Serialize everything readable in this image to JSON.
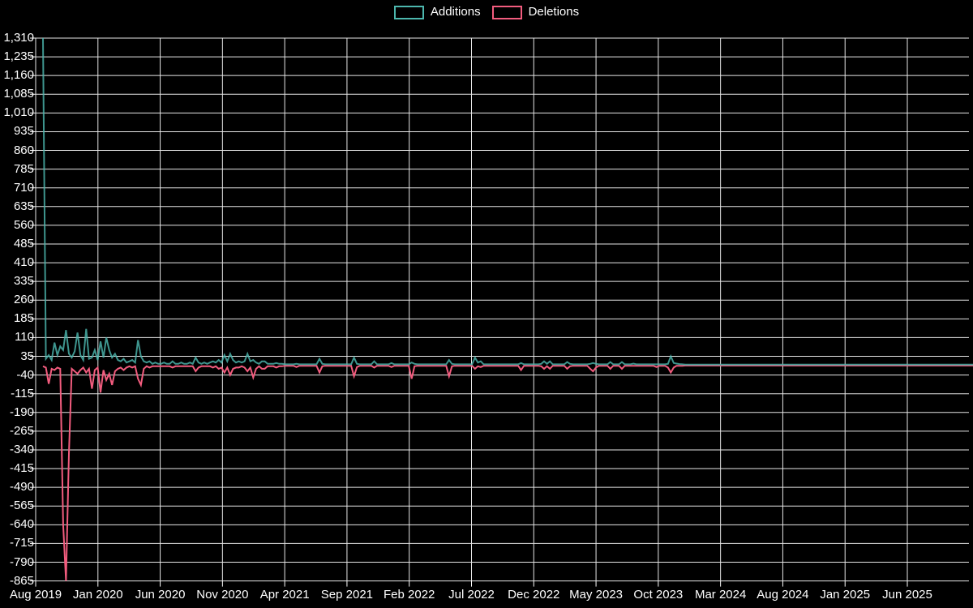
{
  "legend": {
    "items": [
      {
        "label": "Additions",
        "color": "#4cb6ad"
      },
      {
        "label": "Deletions",
        "color": "#f25c7e"
      }
    ]
  },
  "colors": {
    "background": "#000000",
    "grid": "#e6e6e6",
    "axis": "#ffffff",
    "text": "#ffffff",
    "additions": "#4cb6ad",
    "deletions": "#f25c7e"
  },
  "chart_data": {
    "type": "line",
    "title": "",
    "xlabel": "",
    "ylabel": "",
    "grid": true,
    "legend_position": "top-center",
    "x_axis": {
      "tick_labels": [
        "Aug 2019",
        "Jan 2020",
        "Jun 2020",
        "Nov 2020",
        "Apr 2021",
        "Sep 2021",
        "Feb 2022",
        "Jul 2022",
        "Dec 2022",
        "May 2023",
        "Oct 2023",
        "Mar 2024",
        "Aug 2024",
        "Jan 2025",
        "Jun 2025"
      ],
      "months_per_tick": 5
    },
    "y_axis": {
      "min": -865,
      "max": 1310,
      "step": 75,
      "tick_labels": [
        "1,310",
        "1,235",
        "1,160",
        "1,085",
        "1,010",
        "935",
        "860",
        "785",
        "710",
        "635",
        "560",
        "485",
        "410",
        "335",
        "260",
        "185",
        "110",
        "35",
        "-40",
        "-115",
        "-190",
        "-265",
        "-340",
        "-415",
        "-490",
        "-565",
        "-640",
        "-715",
        "-790",
        "-865"
      ]
    },
    "series": [
      {
        "name": "Additions",
        "color": "#4cb6ad",
        "sign": 1
      },
      {
        "name": "Deletions",
        "color": "#f25c7e",
        "sign": -1
      }
    ],
    "x_unit": "week",
    "weekly_values_rle_count_additions_deletions": [
      [
        1,
        1310,
        -5
      ],
      [
        1,
        25,
        -10
      ],
      [
        1,
        40,
        -75
      ],
      [
        1,
        20,
        -15
      ],
      [
        1,
        90,
        -20
      ],
      [
        1,
        40,
        -10
      ],
      [
        1,
        75,
        -15
      ],
      [
        1,
        60,
        -640
      ],
      [
        1,
        140,
        -865
      ],
      [
        1,
        45,
        -355
      ],
      [
        1,
        30,
        -15
      ],
      [
        1,
        55,
        -25
      ],
      [
        1,
        130,
        -35
      ],
      [
        1,
        40,
        -20
      ],
      [
        1,
        20,
        -10
      ],
      [
        1,
        145,
        -30
      ],
      [
        1,
        25,
        -15
      ],
      [
        1,
        30,
        -95
      ],
      [
        1,
        60,
        -20
      ],
      [
        1,
        20,
        -10
      ],
      [
        1,
        95,
        -110
      ],
      [
        1,
        30,
        -20
      ],
      [
        1,
        110,
        -60
      ],
      [
        1,
        60,
        -35
      ],
      [
        1,
        30,
        -80
      ],
      [
        1,
        45,
        -25
      ],
      [
        1,
        20,
        -15
      ],
      [
        1,
        15,
        -10
      ],
      [
        1,
        25,
        -20
      ],
      [
        1,
        10,
        -10
      ],
      [
        1,
        15,
        -5
      ],
      [
        1,
        20,
        -10
      ],
      [
        1,
        10,
        -5
      ],
      [
        1,
        100,
        -55
      ],
      [
        1,
        35,
        -80
      ],
      [
        1,
        15,
        -15
      ],
      [
        1,
        10,
        -5
      ],
      [
        1,
        15,
        -10
      ],
      [
        1,
        5,
        -5
      ],
      [
        1,
        10,
        -5
      ],
      [
        2,
        5,
        -5
      ],
      [
        1,
        10,
        -5
      ],
      [
        2,
        5,
        -5
      ],
      [
        1,
        15,
        -10
      ],
      [
        2,
        5,
        -5
      ],
      [
        1,
        10,
        -5
      ],
      [
        2,
        5,
        -5
      ],
      [
        1,
        10,
        -5
      ],
      [
        1,
        5,
        -5
      ],
      [
        1,
        30,
        -25
      ],
      [
        1,
        10,
        -10
      ],
      [
        1,
        5,
        -5
      ],
      [
        1,
        10,
        -5
      ],
      [
        1,
        5,
        -5
      ],
      [
        1,
        10,
        -5
      ],
      [
        1,
        15,
        -10
      ],
      [
        1,
        10,
        -5
      ],
      [
        1,
        20,
        -15
      ],
      [
        1,
        10,
        -10
      ],
      [
        1,
        40,
        -30
      ],
      [
        1,
        15,
        -10
      ],
      [
        1,
        45,
        -40
      ],
      [
        1,
        20,
        -15
      ],
      [
        1,
        10,
        -10
      ],
      [
        1,
        15,
        -10
      ],
      [
        1,
        10,
        -5
      ],
      [
        1,
        15,
        -10
      ],
      [
        1,
        45,
        -25
      ],
      [
        1,
        15,
        -10
      ],
      [
        1,
        20,
        -50
      ],
      [
        1,
        10,
        -15
      ],
      [
        1,
        5,
        -5
      ],
      [
        2,
        15,
        -15
      ],
      [
        3,
        5,
        -5
      ],
      [
        1,
        8,
        -10
      ],
      [
        2,
        5,
        -5
      ],
      [
        4,
        3,
        -3
      ],
      [
        1,
        5,
        -8
      ],
      [
        7,
        3,
        -3
      ],
      [
        1,
        25,
        -30
      ],
      [
        1,
        5,
        -5
      ],
      [
        10,
        3,
        -3
      ],
      [
        1,
        30,
        -45
      ],
      [
        1,
        5,
        -8
      ],
      [
        5,
        3,
        -3
      ],
      [
        1,
        15,
        -10
      ],
      [
        5,
        3,
        -3
      ],
      [
        1,
        8,
        -8
      ],
      [
        6,
        3,
        -3
      ],
      [
        1,
        10,
        -55
      ],
      [
        1,
        5,
        -5
      ],
      [
        11,
        3,
        -3
      ],
      [
        1,
        20,
        -45
      ],
      [
        1,
        5,
        -5
      ],
      [
        7,
        3,
        -3
      ],
      [
        1,
        30,
        -15
      ],
      [
        1,
        10,
        -5
      ],
      [
        1,
        15,
        -8
      ],
      [
        13,
        3,
        -3
      ],
      [
        1,
        8,
        -20
      ],
      [
        6,
        3,
        -3
      ],
      [
        1,
        5,
        -5
      ],
      [
        1,
        15,
        -15
      ],
      [
        1,
        5,
        -5
      ],
      [
        1,
        15,
        -15
      ],
      [
        5,
        3,
        -3
      ],
      [
        1,
        12,
        -15
      ],
      [
        1,
        5,
        -5
      ],
      [
        6,
        3,
        -3
      ],
      [
        1,
        5,
        -15
      ],
      [
        1,
        8,
        -25
      ],
      [
        1,
        5,
        -10
      ],
      [
        4,
        3,
        -3
      ],
      [
        1,
        12,
        -15
      ],
      [
        3,
        3,
        -3
      ],
      [
        1,
        12,
        -15
      ],
      [
        3,
        3,
        -3
      ],
      [
        1,
        6,
        -3
      ],
      [
        7,
        3,
        -3
      ],
      [
        1,
        3,
        -8
      ],
      [
        3,
        3,
        -3
      ],
      [
        1,
        5,
        -10
      ],
      [
        1,
        35,
        -30
      ],
      [
        1,
        8,
        -10
      ],
      [
        1,
        6,
        -3
      ],
      [
        1,
        4,
        -3
      ],
      [
        1,
        3,
        -3
      ],
      [
        101,
        2,
        -2
      ]
    ]
  }
}
